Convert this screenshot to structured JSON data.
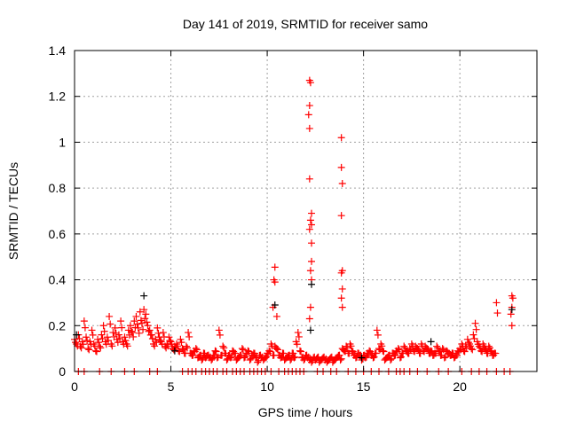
{
  "chart_data": {
    "type": "scatter",
    "title": "Day 141 of 2019, SRMTID for receiver samo",
    "xlabel": "GPS time / hours",
    "ylabel": "SRMTID / TECUs",
    "xlim": [
      0,
      24
    ],
    "ylim": [
      0,
      1.4
    ],
    "xticks": [
      0,
      5,
      10,
      15,
      20
    ],
    "yticks": [
      0,
      0.2,
      0.4,
      0.6,
      0.8,
      1,
      1.2,
      1.4
    ],
    "ytick_labels": [
      "0",
      "0.2",
      "0.4",
      "0.6",
      "0.8",
      "1",
      "1.2",
      "1.4"
    ],
    "grid": true,
    "baseline": {
      "x_start": 0,
      "x_step": 0.1,
      "values": [
        0.14,
        0.12,
        0.16,
        0.11,
        0.13,
        0.22,
        0.15,
        0.1,
        0.13,
        0.18,
        0.12,
        0.09,
        0.14,
        0.11,
        0.16,
        0.2,
        0.13,
        0.15,
        0.24,
        0.12,
        0.17,
        0.19,
        0.14,
        0.16,
        0.22,
        0.13,
        0.15,
        0.12,
        0.18,
        0.2,
        0.17,
        0.22,
        0.24,
        0.19,
        0.26,
        0.21,
        0.27,
        0.25,
        0.2,
        0.18,
        0.16,
        0.12,
        0.14,
        0.19,
        0.15,
        0.13,
        0.17,
        0.11,
        0.12,
        0.15,
        0.13,
        0.1,
        0.11,
        0.12,
        0.09,
        0.14,
        0.1,
        0.08,
        0.11,
        0.17,
        0.08,
        0.07,
        0.09,
        0.1,
        0.06,
        0.07,
        0.05,
        0.08,
        0.06,
        0.07,
        0.06,
        0.05,
        0.07,
        0.09,
        0.06,
        0.18,
        0.07,
        0.11,
        0.08,
        0.05,
        0.07,
        0.06,
        0.09,
        0.08,
        0.05,
        0.06,
        0.07,
        0.1,
        0.06,
        0.08,
        0.09,
        0.05,
        0.07,
        0.08,
        0.06,
        0.04,
        0.07,
        0.06,
        0.05,
        0.06,
        0.08,
        0.09,
        0.12,
        0.07,
        0.11,
        0.1,
        0.07,
        0.06,
        0.08,
        0.05,
        0.06,
        0.07,
        0.05,
        0.08,
        0.06,
        0.13,
        0.17,
        0.09,
        0.06,
        0.05,
        0.07,
        0.06,
        0.05,
        0.04,
        0.06,
        0.05,
        0.06,
        0.04,
        0.05,
        0.06,
        0.05,
        0.04,
        0.05,
        0.06,
        0.04,
        0.05,
        0.06,
        0.07,
        0.05,
        0.1,
        0.09,
        0.11,
        0.08,
        0.12,
        0.09,
        0.07,
        0.06,
        0.08,
        0.07,
        0.05,
        0.07,
        0.06,
        0.08,
        0.09,
        0.07,
        0.06,
        0.08,
        0.18,
        0.1,
        0.12,
        0.09,
        0.05,
        0.06,
        0.07,
        0.05,
        0.08,
        0.07,
        0.09,
        0.1,
        0.06,
        0.08,
        0.11,
        0.09,
        0.08,
        0.1,
        0.12,
        0.09,
        0.11,
        0.1,
        0.08,
        0.12,
        0.09,
        0.11,
        0.1,
        0.08,
        0.09,
        0.07,
        0.08,
        0.11,
        0.09,
        0.07,
        0.1,
        0.06,
        0.09,
        0.08,
        0.07,
        0.08,
        0.06,
        0.07,
        0.09,
        0.1,
        0.12,
        0.09,
        0.11,
        0.14,
        0.12,
        0.1,
        0.16,
        0.21,
        0.13,
        0.11,
        0.09,
        0.12,
        0.1,
        0.08,
        0.11,
        0.09,
        0.07,
        0.08,
        0.3
      ]
    },
    "spikes": [
      {
        "x": 10.4,
        "y": 0.455
      },
      {
        "x": 10.35,
        "y": 0.4
      },
      {
        "x": 10.4,
        "y": 0.39
      },
      {
        "x": 10.3,
        "y": 0.28
      },
      {
        "x": 10.5,
        "y": 0.24
      },
      {
        "x": 12.2,
        "y": 1.27
      },
      {
        "x": 12.25,
        "y": 1.26
      },
      {
        "x": 12.2,
        "y": 1.16
      },
      {
        "x": 12.15,
        "y": 1.12
      },
      {
        "x": 12.2,
        "y": 1.06
      },
      {
        "x": 12.2,
        "y": 0.84
      },
      {
        "x": 12.3,
        "y": 0.69
      },
      {
        "x": 12.25,
        "y": 0.66
      },
      {
        "x": 12.3,
        "y": 0.64
      },
      {
        "x": 12.2,
        "y": 0.62
      },
      {
        "x": 12.3,
        "y": 0.56
      },
      {
        "x": 12.3,
        "y": 0.48
      },
      {
        "x": 12.25,
        "y": 0.44
      },
      {
        "x": 12.3,
        "y": 0.4
      },
      {
        "x": 12.25,
        "y": 0.28
      },
      {
        "x": 12.2,
        "y": 0.23
      },
      {
        "x": 13.85,
        "y": 1.02
      },
      {
        "x": 13.85,
        "y": 0.89
      },
      {
        "x": 13.9,
        "y": 0.82
      },
      {
        "x": 13.85,
        "y": 0.68
      },
      {
        "x": 13.9,
        "y": 0.44
      },
      {
        "x": 13.85,
        "y": 0.43
      },
      {
        "x": 13.9,
        "y": 0.36
      },
      {
        "x": 13.85,
        "y": 0.32
      },
      {
        "x": 13.9,
        "y": 0.28
      },
      {
        "x": 22.7,
        "y": 0.33
      },
      {
        "x": 22.75,
        "y": 0.32
      },
      {
        "x": 22.7,
        "y": 0.28
      },
      {
        "x": 22.65,
        "y": 0.25
      },
      {
        "x": 22.7,
        "y": 0.2
      }
    ],
    "black_points": [
      {
        "x": 3.6,
        "y": 0.33
      },
      {
        "x": 0.1,
        "y": 0.16
      },
      {
        "x": 12.3,
        "y": 0.38
      },
      {
        "x": 12.25,
        "y": 0.18
      },
      {
        "x": 10.4,
        "y": 0.29
      },
      {
        "x": 18.5,
        "y": 0.13
      },
      {
        "x": 22.7,
        "y": 0.27
      },
      {
        "x": 5.2,
        "y": 0.09
      },
      {
        "x": 14.9,
        "y": 0.06
      }
    ],
    "zero_points_x": [
      0.2,
      0.5,
      1.3,
      1.9,
      2.6,
      3.1,
      3.9,
      4.3,
      5.6,
      5.9,
      6.1,
      6.3,
      6.6,
      6.8,
      7.0,
      7.2,
      7.4,
      7.7,
      7.9,
      8.2,
      8.4,
      8.6,
      8.8,
      9.1,
      9.3,
      9.5,
      9.7,
      9.9,
      10.2,
      10.6,
      10.9,
      11.1,
      11.3,
      11.5,
      11.7,
      11.9,
      12.6,
      12.9,
      13.3,
      13.6,
      14.2,
      14.6,
      15.0,
      15.4,
      15.8,
      16.3,
      16.7,
      16.9,
      17.1,
      17.4,
      17.8,
      18.3,
      18.9,
      19.4,
      20.1,
      20.6,
      21.0,
      21.4,
      21.9,
      22.3,
      22.6
    ]
  }
}
